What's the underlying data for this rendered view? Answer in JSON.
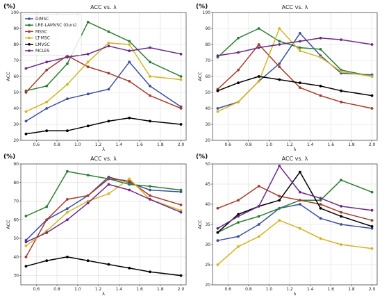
{
  "panel_tag": "(%)",
  "series_styles": [
    {
      "color": "#3a4fa0"
    },
    {
      "color": "#2e7d32"
    },
    {
      "color": "#a63a2c"
    },
    {
      "color": "#d4b422"
    },
    {
      "color": "#000000"
    },
    {
      "color": "#6a2a8a"
    }
  ],
  "chart_data": [
    {
      "type": "line",
      "title": "ACC vs. λ",
      "xlabel": "λ",
      "ylabel": "ACC",
      "x": [
        0.5,
        0.7,
        0.9,
        1.1,
        1.3,
        1.5,
        1.7,
        2.0
      ],
      "xticks": [
        "0.6",
        "0.8",
        "1.0",
        "1.2",
        "1.4",
        "1.6",
        "1.8",
        "2.0"
      ],
      "xlim": [
        0.45,
        2.05
      ],
      "ylim": [
        20,
        100
      ],
      "yticks": [
        "20",
        "30",
        "40",
        "50",
        "60",
        "70",
        "80",
        "90",
        "100"
      ],
      "grid": true,
      "legend": "top-left",
      "series": [
        {
          "name": "DiMSC",
          "values": [
            32,
            40,
            46,
            49,
            52,
            69,
            54,
            41
          ]
        },
        {
          "name": "LRE-LAMVSC (Ours)",
          "values": [
            51,
            54,
            68,
            94,
            88,
            82,
            69,
            60
          ]
        },
        {
          "name": "MSSC",
          "values": [
            50,
            64,
            73,
            66,
            62,
            57,
            48,
            40
          ]
        },
        {
          "name": "LT-MSC",
          "values": [
            38,
            44,
            55,
            69,
            81,
            80,
            60,
            58
          ]
        },
        {
          "name": "LMVSC",
          "values": [
            24,
            26,
            26,
            29,
            32,
            34,
            32,
            30
          ]
        },
        {
          "name": "MCLES",
          "values": [
            65,
            69,
            72,
            74,
            79,
            76,
            78,
            74
          ]
        }
      ]
    },
    {
      "type": "line",
      "title": "ACC vs. λ",
      "xlabel": "λ",
      "ylabel": "ACC",
      "x": [
        0.5,
        0.7,
        0.9,
        1.1,
        1.3,
        1.5,
        1.7,
        2.0
      ],
      "xticks": [
        "0.6",
        "0.8",
        "1.0",
        "1.2",
        "1.4",
        "1.6",
        "1.8",
        "2.0"
      ],
      "xlim": [
        0.45,
        2.05
      ],
      "ylim": [
        20,
        100
      ],
      "yticks": [
        "20",
        "30",
        "40",
        "50",
        "60",
        "70",
        "80",
        "90",
        "100"
      ],
      "grid": true,
      "series": [
        {
          "name": "DiMSC",
          "values": [
            40,
            44,
            57,
            68,
            87,
            73,
            62,
            61
          ]
        },
        {
          "name": "LRE-LAMVSC (Ours)",
          "values": [
            72,
            84,
            90,
            82,
            78,
            77,
            64,
            60
          ]
        },
        {
          "name": "MSSC",
          "values": [
            52,
            64,
            80,
            66,
            53,
            48,
            44,
            40
          ]
        },
        {
          "name": "LT-MSC",
          "values": [
            38,
            44,
            57,
            90,
            76,
            72,
            63,
            60
          ]
        },
        {
          "name": "LMVSC",
          "values": [
            51,
            56,
            60,
            58,
            56,
            54,
            51,
            48
          ]
        },
        {
          "name": "MCLES",
          "values": [
            73,
            75,
            78,
            80,
            82,
            84,
            83,
            80
          ]
        }
      ]
    },
    {
      "type": "line",
      "title": "ACC vs. λ",
      "xlabel": "λ",
      "ylabel": "ACC",
      "x": [
        0.5,
        0.7,
        0.9,
        1.1,
        1.3,
        1.5,
        1.7,
        2.0
      ],
      "xticks": [
        "0.6",
        "0.8",
        "1.0",
        "1.2",
        "1.4",
        "1.6",
        "1.8",
        "2.0"
      ],
      "xlim": [
        0.45,
        2.05
      ],
      "ylim": [
        25,
        90
      ],
      "yticks": [
        "30",
        "40",
        "50",
        "60",
        "70",
        "80",
        "90"
      ],
      "grid": true,
      "series": [
        {
          "name": "DiMSC",
          "values": [
            49,
            60,
            66,
            73,
            83,
            80,
            76,
            75
          ]
        },
        {
          "name": "LRE-LAMVSC (Ours)",
          "values": [
            62,
            67,
            86,
            84,
            82,
            79,
            78,
            76
          ]
        },
        {
          "name": "MSSC",
          "values": [
            40,
            60,
            71,
            73,
            82,
            81,
            73,
            68
          ]
        },
        {
          "name": "LT-MSC",
          "values": [
            46,
            54,
            64,
            70,
            74,
            82,
            71,
            65
          ]
        },
        {
          "name": "LMVSC",
          "values": [
            35,
            38,
            40,
            38,
            36,
            34,
            32,
            30
          ]
        },
        {
          "name": "MCLES",
          "values": [
            48,
            53,
            60,
            69,
            79,
            76,
            71,
            64
          ]
        }
      ]
    },
    {
      "type": "line",
      "title": "ACC vs. λ",
      "xlabel": "λ",
      "ylabel": "ACC",
      "x": [
        0.5,
        0.7,
        0.9,
        1.1,
        1.3,
        1.5,
        1.7,
        2.0
      ],
      "xticks": [
        "0.6",
        "0.8",
        "1.0",
        "1.2",
        "1.4",
        "1.6",
        "1.8",
        "2.0"
      ],
      "xlim": [
        0.45,
        2.05
      ],
      "ylim": [
        20,
        50
      ],
      "yticks": [
        "20",
        "25",
        "30",
        "35",
        "40",
        "45",
        "50"
      ],
      "grid": true,
      "series": [
        {
          "name": "DiMSC",
          "values": [
            31,
            32,
            35,
            39,
            40,
            36.5,
            35,
            34
          ]
        },
        {
          "name": "LRE-LAMVSC (Ours)",
          "values": [
            33,
            35.5,
            37,
            39,
            41,
            41,
            46,
            43
          ]
        },
        {
          "name": "MSSC",
          "values": [
            39,
            41,
            44.5,
            42,
            41,
            40,
            38,
            36
          ]
        },
        {
          "name": "LT-MSC",
          "values": [
            25,
            29.5,
            32,
            36,
            34,
            31.5,
            30,
            29
          ]
        },
        {
          "name": "LMVSC",
          "values": [
            33,
            37.5,
            39.5,
            41,
            48,
            39,
            37,
            34.5
          ]
        },
        {
          "name": "MCLES",
          "values": [
            34,
            37,
            39.5,
            49.5,
            43,
            41.5,
            39.5,
            38.5
          ]
        }
      ]
    }
  ]
}
